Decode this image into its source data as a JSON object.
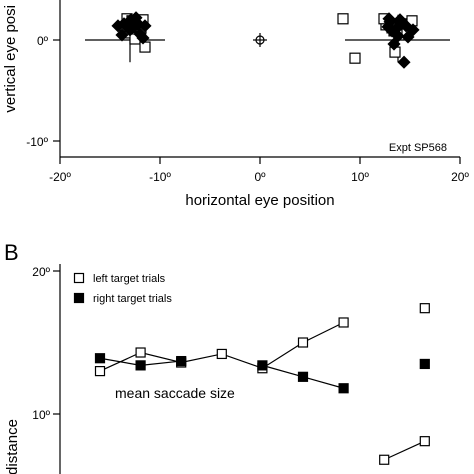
{
  "chart_data": [
    {
      "type": "scatter",
      "xlabel": "horizontal eye position",
      "ylabel": "vertical eye position",
      "ylabel_visible": "vertical eye posi",
      "annotation": "Expt SP568",
      "xlim": [
        -20,
        20
      ],
      "ylim": [
        -10,
        2.5
      ],
      "x_ticks": [
        -20,
        -10,
        0,
        10,
        20
      ],
      "x_tick_labels": [
        "-20º",
        "-10º",
        "0º",
        "10º",
        "20º"
      ],
      "y_ticks": [
        0,
        -10
      ],
      "y_tick_labels": [
        "0º",
        "-10º"
      ],
      "fixation_marker": {
        "x": 0,
        "y": 0,
        "symbol": "cross-circle"
      },
      "series": [
        {
          "marker": "open-square",
          "points": [
            [
              -13.2,
              1.8
            ],
            [
              -12.2,
              1.6
            ],
            [
              -11.7,
              2.0
            ],
            [
              -13.5,
              1.0
            ],
            [
              -11.9,
              1.2
            ],
            [
              -13.0,
              0.7
            ],
            [
              -12.5,
              0.1
            ],
            [
              -11.5,
              -0.7
            ],
            [
              -13.3,
              2.1
            ],
            [
              -12.8,
              1.9
            ],
            [
              8.3,
              2.1
            ],
            [
              9.5,
              -1.8
            ],
            [
              12.6,
              1.5
            ],
            [
              13.2,
              1.2
            ],
            [
              14.2,
              1.6
            ],
            [
              15.0,
              1.4
            ],
            [
              13.4,
              0.9
            ],
            [
              12.4,
              2.1
            ],
            [
              13.5,
              -1.2
            ],
            [
              13.9,
              0.5
            ],
            [
              15.2,
              1.9
            ],
            [
              14.7,
              0.8
            ]
          ]
        },
        {
          "marker": "filled-diamond",
          "points": [
            [
              -14.2,
              1.4
            ],
            [
              -13.8,
              0.5
            ],
            [
              -12.6,
              1.3
            ],
            [
              -12.2,
              1.6
            ],
            [
              -11.5,
              1.4
            ],
            [
              -12.9,
              2.0
            ],
            [
              -13.0,
              1.0
            ],
            [
              -12.0,
              0.6
            ],
            [
              -13.6,
              1.6
            ],
            [
              -11.7,
              0.2
            ],
            [
              -12.4,
              2.2
            ],
            [
              12.8,
              1.3
            ],
            [
              13.2,
              0.9
            ],
            [
              14.2,
              1.6
            ],
            [
              13.8,
              0.4
            ],
            [
              14.6,
              1.4
            ],
            [
              13.0,
              1.8
            ],
            [
              14.8,
              0.3
            ],
            [
              13.4,
              -0.4
            ],
            [
              14.4,
              -2.2
            ],
            [
              12.9,
              2.1
            ],
            [
              15.3,
              1.0
            ],
            [
              14.0,
              2.0
            ],
            [
              13.6,
              1.1
            ]
          ]
        }
      ],
      "crosshairs": [
        {
          "x": -13,
          "y": 0,
          "x_range": [
            -17.5,
            -9.5
          ],
          "y_range": [
            -2.2,
            2.5
          ]
        },
        {
          "x": 13.8,
          "y": 0,
          "x_range": [
            8.5,
            19
          ],
          "y_range": [
            -2.2,
            2.5
          ]
        }
      ]
    },
    {
      "type": "line",
      "panel_label": "B",
      "ylabel_visible": "distance",
      "annotation": "mean saccade size",
      "ylim": [
        7.5,
        20
      ],
      "y_ticks": [
        20,
        10
      ],
      "y_tick_labels": [
        "20º",
        "10º"
      ],
      "x": [
        1,
        2,
        3,
        4,
        5,
        6,
        7,
        8,
        9
      ],
      "series": [
        {
          "name": "left target trials",
          "marker": "open-square",
          "values": [
            13.0,
            14.3,
            13.6,
            14.2,
            13.2,
            15.0,
            16.4,
            null,
            17.4
          ]
        },
        {
          "name": "right target trials",
          "marker": "filled-square",
          "values": [
            13.9,
            13.4,
            13.7,
            null,
            13.4,
            12.6,
            11.8,
            null,
            13.5
          ]
        },
        {
          "name": "",
          "marker": "open-square",
          "values": [
            null,
            null,
            null,
            null,
            null,
            null,
            null,
            6.8,
            8.1
          ]
        }
      ]
    }
  ]
}
